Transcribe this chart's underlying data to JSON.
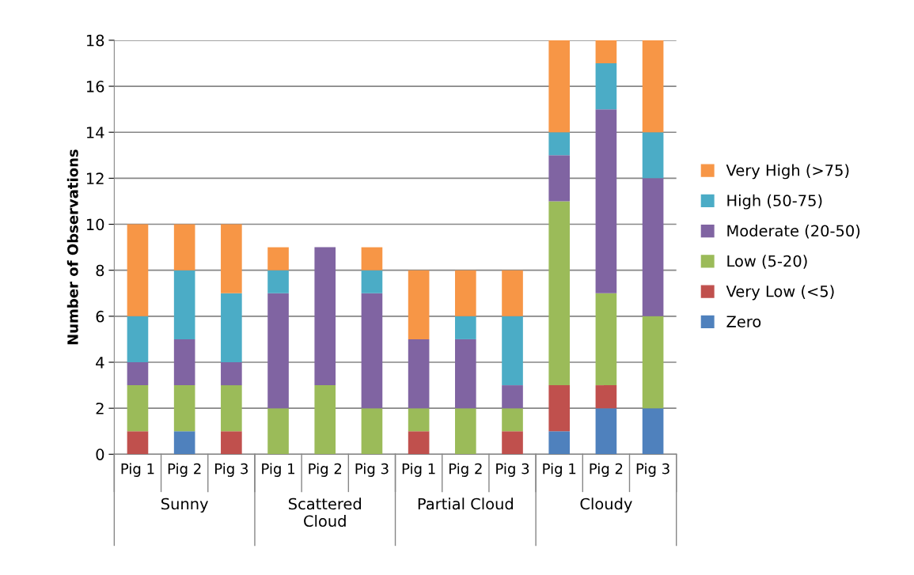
{
  "chart_data": {
    "type": "bar",
    "stacked": true,
    "ylabel": "Number of Observations",
    "categories": [
      "Pig 1",
      "Pig 2",
      "Pig 3",
      "Pig 1",
      "Pig 2",
      "Pig 3",
      "Pig 1",
      "Pig 2",
      "Pig 3",
      "Pig 1",
      "Pig 2",
      "Pig 3"
    ],
    "annotations": [
      "Sunny",
      "Scattered\nCloud",
      "Partial Cloud",
      "Cloudy"
    ],
    "series": [
      {
        "name": "Zero",
        "color": "#4f81bd",
        "values": [
          0,
          1,
          0,
          0,
          0,
          0,
          0,
          0,
          0,
          1,
          2,
          2
        ]
      },
      {
        "name": "Very Low (<5)",
        "color": "#c0504d",
        "values": [
          1,
          0,
          1,
          0,
          0,
          0,
          1,
          0,
          1,
          2,
          1,
          0
        ]
      },
      {
        "name": "Low (5-20)",
        "color": "#9bbb59",
        "values": [
          2,
          2,
          2,
          2,
          3,
          2,
          1,
          2,
          1,
          8,
          4,
          4
        ]
      },
      {
        "name": "Moderate (20-50)",
        "color": "#8064a2",
        "values": [
          1,
          2,
          1,
          5,
          6,
          5,
          3,
          3,
          1,
          2,
          8,
          6
        ]
      },
      {
        "name": "High (50-75)",
        "color": "#4bacc6",
        "values": [
          2,
          3,
          3,
          1,
          0,
          1,
          0,
          1,
          3,
          1,
          2,
          2
        ]
      },
      {
        "name": "Very High (>75)",
        "color": "#f79646",
        "values": [
          4,
          2,
          3,
          1,
          0,
          1,
          3,
          2,
          2,
          4,
          1,
          4
        ]
      }
    ],
    "ylim": [
      0,
      18
    ],
    "yticks": [
      0,
      2,
      4,
      6,
      8,
      10,
      12,
      14,
      16,
      18
    ],
    "grid": "y",
    "legend": "right"
  }
}
